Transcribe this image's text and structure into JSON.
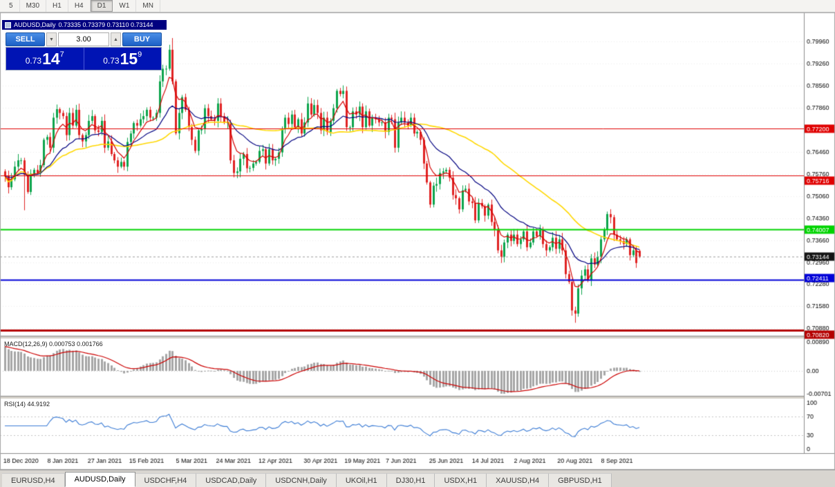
{
  "toolbar": {
    "items": [
      "5",
      "M30",
      "H1",
      "H4",
      "D1",
      "W1",
      "MN"
    ],
    "active": "D1"
  },
  "chart_title": {
    "symbol": "AUDUSD,Daily",
    "ohlc": "0.73335 0.73379 0.73110 0.73144"
  },
  "oct": {
    "sell_label": "SELL",
    "buy_label": "BUY",
    "volume": "3.00",
    "bid": {
      "prefix": "0.73",
      "big": "14",
      "sup": "7"
    },
    "ask": {
      "prefix": "0.73",
      "big": "15",
      "sup": "9"
    }
  },
  "indicators": {
    "macd_label": "MACD(12,26,9) 0.000753 0.001766",
    "rsi_label": "RSI(14) 44.9192"
  },
  "tabs": [
    {
      "label": "EURUSD,H4"
    },
    {
      "label": "AUDUSD,Daily",
      "active": true
    },
    {
      "label": "USDCHF,H4"
    },
    {
      "label": "USDCAD,Daily"
    },
    {
      "label": "USDCNH,Daily"
    },
    {
      "label": "UKOil,H1"
    },
    {
      "label": "DJ30,H1"
    },
    {
      "label": "USDX,H1"
    },
    {
      "label": "XAUUSD,H4"
    },
    {
      "label": "GBPUSD,H1"
    }
  ],
  "chart_data": {
    "type": "candlestick",
    "symbol": "AUDUSD",
    "timeframe": "Daily",
    "current_bar": {
      "open": 0.73335,
      "high": 0.73379,
      "low": 0.7311,
      "close": 0.73144
    },
    "price_axis": {
      "max": 0.8075,
      "min": 0.7065,
      "plain_labels": [
        "0.79960",
        "0.79260",
        "0.78560",
        "0.77860",
        "0.76460",
        "0.75760",
        "0.75060",
        "0.74360",
        "0.73660",
        "0.72960",
        "0.72280",
        "0.71580",
        "0.70880"
      ]
    },
    "x_ticks": {
      "indices": [
        5,
        18,
        31,
        44,
        58,
        71,
        84,
        98,
        111,
        123,
        137,
        150,
        163,
        177,
        190
      ],
      "labels": [
        "18 Dec 2020",
        "8 Jan 2021",
        "27 Jan 2021",
        "15 Feb 2021",
        "5 Mar 2021",
        "24 Mar 2021",
        "12 Apr 2021",
        "30 Apr 2021",
        "19 May 2021",
        "7 Jun 2021",
        "25 Jun 2021",
        "14 Jul 2021",
        "2 Aug 2021",
        "20 Aug 2021",
        "8 Sep 2021"
      ]
    },
    "hlines": [
      {
        "price": 0.772,
        "label": "0.77200",
        "color": "#e00000",
        "width": 1
      },
      {
        "price": 0.75716,
        "label": "0.75716",
        "color": "#e00000",
        "width": 1
      },
      {
        "price": 0.74007,
        "label": "0.74007",
        "color": "#00d400",
        "width": 2
      },
      {
        "price": 0.72411,
        "label": "0.72411",
        "color": "#0000d8",
        "width": 2
      },
      {
        "price": 0.7082,
        "label": "0.70820",
        "color": "#b40000",
        "width": 3
      }
    ],
    "current_price": {
      "value": 0.73144,
      "label": "0.73144",
      "badge_color": "#141414"
    },
    "candle_colors": {
      "up": "#0ca44c",
      "down": "#e02222"
    },
    "ma": [
      {
        "type": "sma",
        "period": 50,
        "color": "#ffd800"
      },
      {
        "type": "ema",
        "period": 20,
        "color": "#000080"
      },
      {
        "type": "ema",
        "period": 6,
        "color": "#d40000"
      }
    ],
    "macd": {
      "params": [
        12,
        26,
        9
      ],
      "value": 0.000753,
      "signal": 0.001766,
      "axis_labels": [
        "0.00890",
        "0.00",
        "-0.00701"
      ],
      "axis_max": 0.0089,
      "axis_min": -0.00701,
      "hist_color": "#a6a6a6",
      "signal_color": "#cc0000"
    },
    "rsi": {
      "period": 14,
      "value": 44.9192,
      "axis_labels": [
        "100",
        "70",
        "30",
        "0"
      ],
      "levels": [
        70,
        30
      ],
      "color": "#3a7bd5"
    },
    "closes": [
      0.757,
      0.7535,
      0.756,
      0.76,
      0.762,
      0.762,
      0.7574,
      0.752,
      0.7578,
      0.759,
      0.758,
      0.7605,
      0.7685,
      0.7694,
      0.766,
      0.7755,
      0.7782,
      0.777,
      0.776,
      0.77,
      0.777,
      0.773,
      0.778,
      0.77,
      0.768,
      0.77,
      0.7745,
      0.776,
      0.7715,
      0.771,
      0.7745,
      0.766,
      0.768,
      0.764,
      0.762,
      0.76,
      0.7615,
      0.76,
      0.7678,
      0.7705,
      0.7738,
      0.773,
      0.775,
      0.776,
      0.778,
      0.7755,
      0.7755,
      0.777,
      0.787,
      0.791,
      0.791,
      0.797,
      0.787,
      0.7706,
      0.777,
      0.782,
      0.778,
      0.7725,
      0.7685,
      0.765,
      0.7715,
      0.772,
      0.7785,
      0.776,
      0.775,
      0.7745,
      0.78,
      0.776,
      0.774,
      0.774,
      0.762,
      0.758,
      0.7585,
      0.7625,
      0.764,
      0.7595,
      0.7596,
      0.761,
      0.7615,
      0.765,
      0.7655,
      0.761,
      0.7655,
      0.762,
      0.7625,
      0.7645,
      0.772,
      0.7755,
      0.7735,
      0.7765,
      0.7725,
      0.775,
      0.7705,
      0.774,
      0.78,
      0.7765,
      0.7795,
      0.777,
      0.7715,
      0.7755,
      0.771,
      0.7745,
      0.7785,
      0.784,
      0.783,
      0.784,
      0.7725,
      0.7725,
      0.7775,
      0.7765,
      0.779,
      0.7725,
      0.7775,
      0.773,
      0.7755,
      0.775,
      0.774,
      0.774,
      0.771,
      0.7755,
      0.775,
      0.766,
      0.774,
      0.7755,
      0.774,
      0.773,
      0.7755,
      0.7705,
      0.771,
      0.7685,
      0.761,
      0.755,
      0.748,
      0.754,
      0.7545,
      0.758,
      0.7585,
      0.759,
      0.7565,
      0.751,
      0.75,
      0.7465,
      0.7525,
      0.753,
      0.749,
      0.7485,
      0.743,
      0.7485,
      0.7475,
      0.7445,
      0.748,
      0.7425,
      0.74,
      0.7335,
      0.7315,
      0.736,
      0.7385,
      0.7365,
      0.7385,
      0.7355,
      0.737,
      0.7395,
      0.7345,
      0.736,
      0.7395,
      0.738,
      0.74,
      0.7355,
      0.7335,
      0.7345,
      0.7375,
      0.734,
      0.737,
      0.7335,
      0.726,
      0.7235,
      0.7145,
      0.7135,
      0.7215,
      0.7255,
      0.7275,
      0.724,
      0.731,
      0.729,
      0.7315,
      0.737,
      0.74,
      0.745,
      0.744,
      0.7385,
      0.737,
      0.7365,
      0.7355,
      0.737,
      0.732,
      0.7335,
      0.7295,
      0.73144
    ],
    "overrides": {
      "6": {
        "l": 0.7462
      },
      "52": {
        "h": 0.8007
      },
      "177": {
        "l": 0.7106
      },
      "197": {
        "o": 0.73335,
        "h": 0.73379,
        "l": 0.7311,
        "c": 0.73144
      }
    }
  }
}
